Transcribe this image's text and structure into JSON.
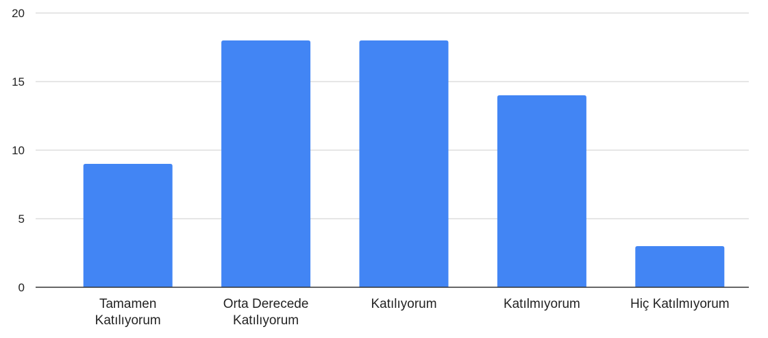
{
  "chart_data": {
    "type": "bar",
    "categories": [
      [
        "Tamamen",
        "Katılıyorum"
      ],
      [
        "Orta Derecede",
        "Katılıyorum"
      ],
      [
        "Katılıyorum"
      ],
      [
        "Katılmıyorum"
      ],
      [
        "Hiç Katılmıyorum"
      ]
    ],
    "values": [
      9,
      18,
      18,
      14,
      3
    ],
    "ylim": [
      0,
      20
    ],
    "yticks": [
      "0",
      "5",
      "10",
      "15",
      "20"
    ],
    "title": "",
    "xlabel": "",
    "ylabel": "",
    "grid": true,
    "legend": "none"
  },
  "colors": {
    "bar": "#4285f4",
    "grid": "#cccccc",
    "axis": "#333333"
  }
}
